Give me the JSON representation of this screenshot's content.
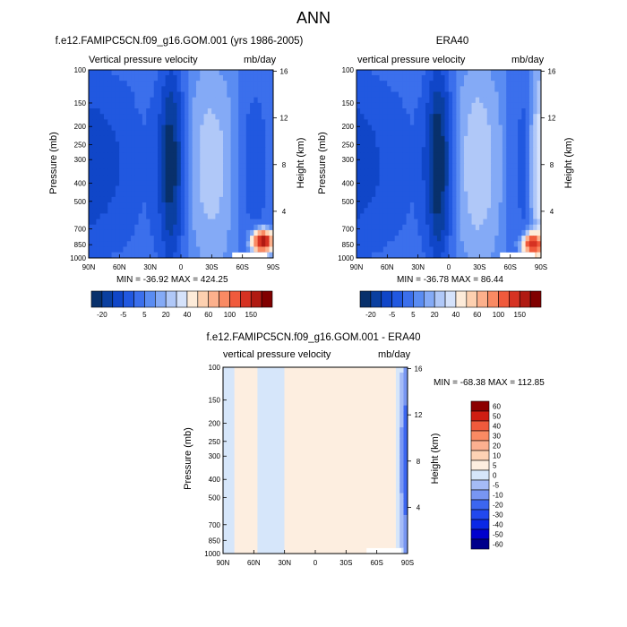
{
  "main_title": "ANN",
  "chart_data": [
    {
      "type": "contour",
      "title": "f.e12.FAMIPC5CN.f09_g16.GOM.001 (yrs 1986-2005)",
      "left_label": "Vertical pressure velocity",
      "right_label": "mb/day",
      "ylabel": "Pressure (mb)",
      "ylabel_right": "Height (km)",
      "stats": "MIN = -36.92  MAX = 424.25",
      "x_ticks": [
        "90N",
        "60N",
        "30N",
        "0",
        "30S",
        "60S",
        "90S"
      ],
      "y_ticks": [
        "100",
        "150",
        "200",
        "250",
        "300",
        "400",
        "500",
        "700",
        "850",
        "1000"
      ],
      "height_ticks": [
        "16",
        "12",
        "8",
        "4"
      ],
      "levels": [
        -20,
        -15,
        -10,
        -5,
        0,
        5,
        10,
        15,
        20,
        30,
        40,
        50,
        60,
        80,
        100,
        125,
        150
      ],
      "colorbar_labels": [
        "-20",
        "-5",
        "5",
        "20",
        "40",
        "60",
        "100",
        "150"
      ],
      "profile": [
        -12,
        -12,
        -11,
        -10,
        -9,
        -8,
        -6,
        -5,
        -7,
        -12,
        -22,
        -18,
        -3,
        6,
        10,
        12,
        11,
        9,
        4,
        -2,
        -6,
        -7,
        -5,
        -3
      ],
      "hotspot": {
        "lat": -80,
        "p": 820,
        "value": 424.25
      }
    },
    {
      "type": "contour",
      "title": "ERA40",
      "left_label": "vertical pressure velocity",
      "right_label": "mb/day",
      "ylabel": "Pressure (mb)",
      "ylabel_right": "Height (km)",
      "stats": "MIN = -36.78  MAX =  86.44",
      "x_ticks": [
        "90N",
        "60N",
        "30N",
        "0",
        "30S",
        "60S",
        "90S"
      ],
      "y_ticks": [
        "100",
        "150",
        "200",
        "250",
        "300",
        "400",
        "500",
        "700",
        "850",
        "1000"
      ],
      "height_ticks": [
        "16",
        "12",
        "8",
        "4"
      ],
      "levels": [
        -20,
        -15,
        -10,
        -5,
        0,
        5,
        10,
        15,
        20,
        30,
        40,
        50,
        60,
        80,
        100,
        125,
        150
      ],
      "colorbar_labels": [
        "-20",
        "-5",
        "5",
        "20",
        "40",
        "60",
        "100",
        "150"
      ],
      "profile": [
        -12,
        -11,
        -10,
        -9,
        -8,
        -7,
        -6,
        -5,
        -7,
        -13,
        -24,
        -18,
        -3,
        7,
        11,
        13,
        12,
        9,
        5,
        -1,
        -5,
        -6,
        8,
        20
      ],
      "hotspot": {
        "lat": -82,
        "p": 850,
        "value": 86.44
      }
    },
    {
      "type": "contour",
      "title": "f.e12.FAMIPC5CN.f09_g16.GOM.001 - ERA40",
      "left_label": "vertical pressure velocity",
      "right_label": "mb/day",
      "ylabel": "Pressure (mb)",
      "ylabel_right": "Height (km)",
      "stats": "MIN = -68.38  MAX = 112.85",
      "x_ticks": [
        "90N",
        "60N",
        "30N",
        "0",
        "30S",
        "60S",
        "90S"
      ],
      "y_ticks": [
        "100",
        "150",
        "200",
        "250",
        "300",
        "400",
        "500",
        "700",
        "850",
        "1000"
      ],
      "height_ticks": [
        "16",
        "12",
        "8",
        "4"
      ],
      "levels": [
        -60,
        -50,
        -40,
        -30,
        -20,
        -10,
        -5,
        0,
        5,
        10,
        20,
        30,
        40,
        50,
        60
      ],
      "colorbar_labels": [
        "60",
        "50",
        "40",
        "30",
        "20",
        "10",
        "5",
        "0",
        "-5",
        "-10",
        "-20",
        "-30",
        "-40",
        "-50",
        "-60"
      ],
      "profile": [
        -2,
        -1,
        1,
        2,
        1,
        -1,
        -2,
        -1,
        1,
        2,
        1,
        1,
        2,
        2,
        3,
        3,
        2,
        1,
        1,
        2,
        3,
        2,
        -2,
        -30
      ]
    }
  ]
}
